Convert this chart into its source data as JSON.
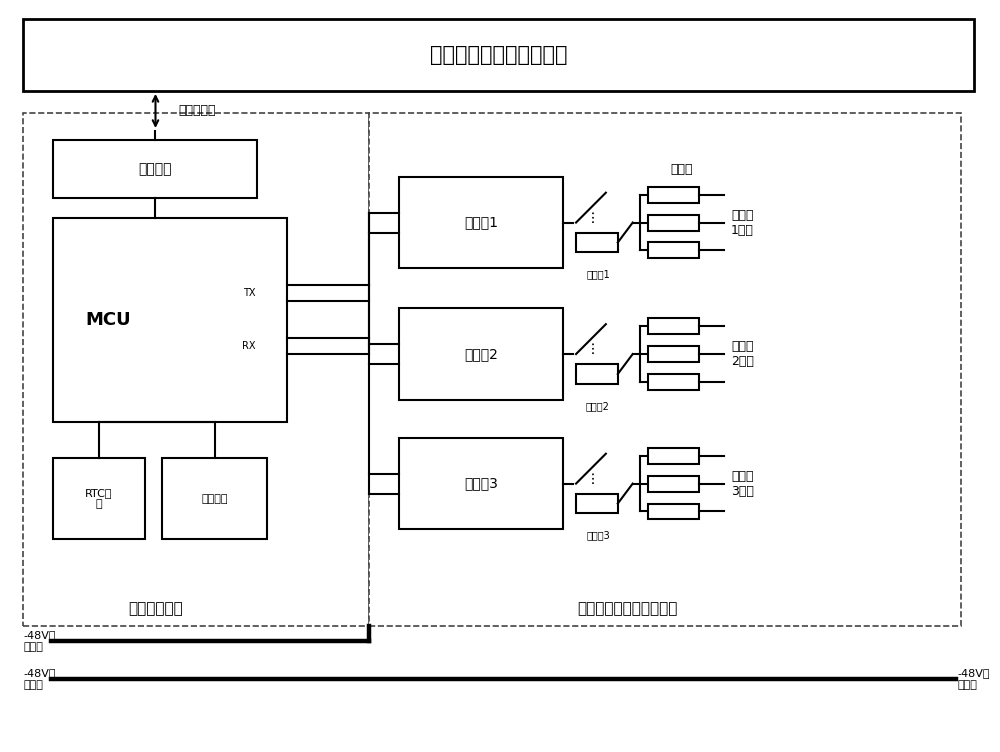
{
  "title": "数据展示及控制应用单元",
  "iot_label": "蜂窝物联网",
  "dp_label": "数据处理单元",
  "da_label": "数据采集及开关执行单元",
  "comm_label": "通信模组",
  "mcu_label": "MCU",
  "rtc_label": "RTC时\n钟",
  "power_label": "电源模块",
  "ctrl_labels": [
    "控制板1",
    "控制板2",
    "控制板3"
  ],
  "relay_labels": [
    "继电器1",
    "继电器2",
    "继电器3"
  ],
  "fuse_label": "保险丝",
  "output_labels": [
    "输出组\n1负极",
    "输出组\n2负极",
    "输出组\n3负极"
  ],
  "tx_label": "TX",
  "rx_label": "RX",
  "bus1_left": "-48V负\n极母线",
  "bus2_left": "-48V正\n极母线",
  "bus1_right": "-48V正\n极母线",
  "bg": "#ffffff",
  "lc": "#000000"
}
